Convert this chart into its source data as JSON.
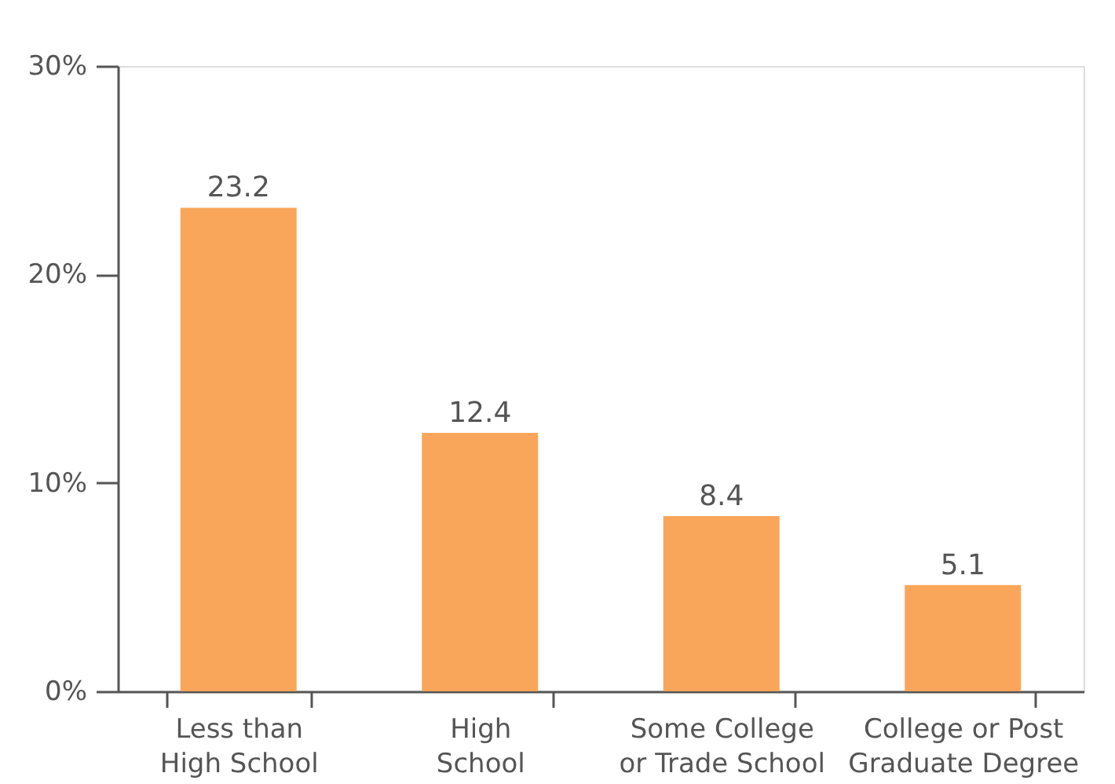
{
  "chart_data": {
    "type": "bar",
    "categories": [
      "Less than High School",
      "High School",
      "Some College or Trade School",
      "College or Post Graduate Degree"
    ],
    "values": [
      23.2,
      12.4,
      8.4,
      5.1
    ],
    "color": "#f9a65a",
    "ylim": [
      0,
      30
    ],
    "yticks": [
      {
        "value": 0,
        "label": "0%"
      },
      {
        "value": 10,
        "label": "10%"
      },
      {
        "value": 20,
        "label": "20%"
      },
      {
        "value": 30,
        "label": "30%"
      }
    ],
    "data_labels": true,
    "grid": false
  }
}
